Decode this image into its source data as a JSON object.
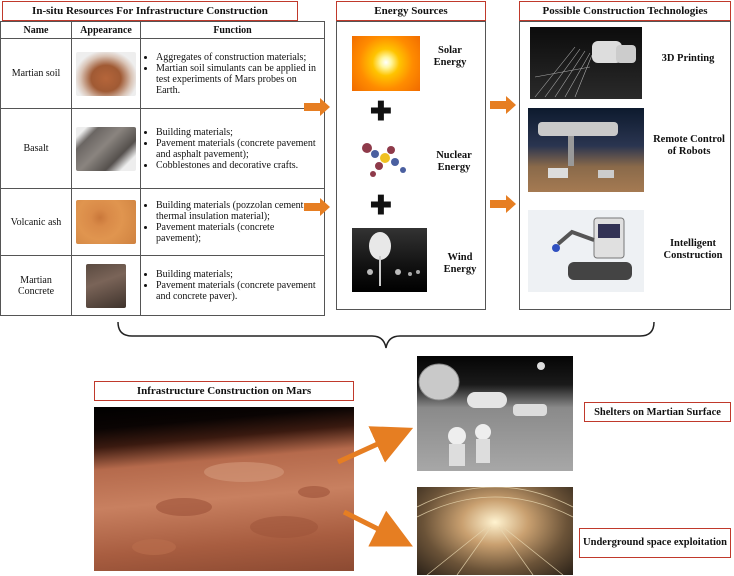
{
  "resources": {
    "title": "In-situ Resources For Infrastructure Construction",
    "headers": [
      "Name",
      "Appearance",
      "Function"
    ],
    "rows": [
      {
        "name": "Martian soil",
        "functions": [
          "Aggregates of construction materials;",
          "Martian soil simulants can be applied in test experiments of Mars probes on Earth."
        ]
      },
      {
        "name": "Basalt",
        "functions": [
          "Building materials;",
          "Pavement materials (concrete pavement and asphalt pavement);",
          "Cobblestones and decorative crafts."
        ]
      },
      {
        "name": "Volcanic ash",
        "functions": [
          "Building materials (pozzolan cement, thermal insulation material);",
          "Pavement materials (concrete pavement);"
        ]
      },
      {
        "name": "Martian Concrete",
        "functions": [
          "Building materials;",
          "Pavement materials (concrete pavement and concrete paver)."
        ]
      }
    ]
  },
  "energy": {
    "title": "Energy Sources",
    "items": [
      "Solar Energy",
      "Nuclear Energy",
      "Wind Energy"
    ]
  },
  "technologies": {
    "title": "Possible Construction Technologies",
    "items": [
      "3D Printing",
      "Remote Control of Robots",
      "Intelligent Construction"
    ]
  },
  "mars": {
    "title": "Infrastructure Construction on Mars",
    "outcomes": [
      "Shelters on Martian Surface",
      "Underground space exploitation"
    ]
  },
  "colors": {
    "arrow": "#e67e22",
    "title_border": "#c0392b"
  }
}
